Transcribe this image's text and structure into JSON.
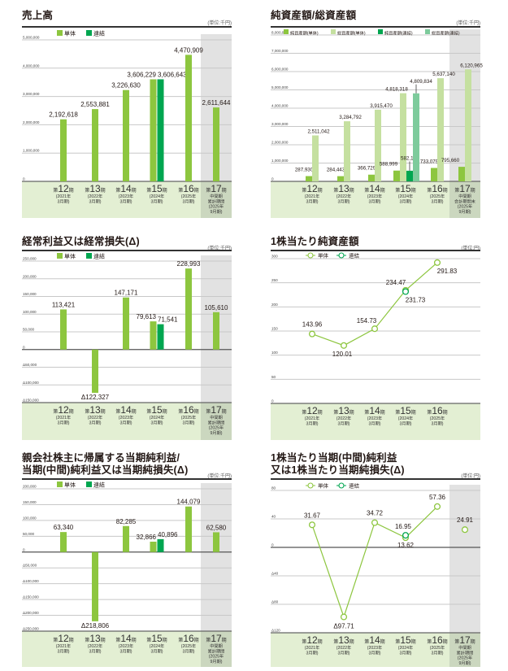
{
  "colors": {
    "standalone": "#8dc63f",
    "consolidated": "#00a650",
    "total_standalone": "#c5e0a0",
    "total_consolidated": "#7ecb9c",
    "band": "#e3efd3",
    "shade": "#e2e2e2",
    "shade_band": "#cbd7bf"
  },
  "chart_data": [
    {
      "type": "bar",
      "title": [
        "売上高"
      ],
      "unit": "(単位:千円)",
      "ylim": [
        0,
        5000000
      ],
      "yticks": [
        0,
        1000000,
        2000000,
        3000000,
        4000000,
        5000000
      ],
      "categories": [
        {
          "num": "12",
          "sub": [
            "(2021年",
            "3月期)"
          ]
        },
        {
          "num": "13",
          "sub": [
            "(2022年",
            "3月期)"
          ]
        },
        {
          "num": "14",
          "sub": [
            "(2023年",
            "3月期)"
          ]
        },
        {
          "num": "15",
          "sub": [
            "(2024年",
            "3月期)"
          ]
        },
        {
          "num": "16",
          "sub": [
            "(2025年",
            "3月期)"
          ]
        },
        {
          "num": "17",
          "sub": [
            "中間期",
            "累計期間",
            "(2025年",
            "9月期)"
          ]
        }
      ],
      "series": [
        {
          "name": "単体",
          "color": "#8dc63f",
          "values": [
            2192618,
            2553881,
            3226630,
            3606229,
            4470909,
            2611644
          ],
          "labels": [
            "2,192,618",
            "2,553,881",
            "3,226,630",
            "3,606,229",
            "4,470,909",
            "2,611,644"
          ]
        },
        {
          "name": "連結",
          "color": "#00a650",
          "values": [
            null,
            null,
            null,
            3606643,
            null,
            null
          ],
          "labels": [
            null,
            null,
            null,
            "3,606,643",
            null,
            null
          ]
        }
      ]
    },
    {
      "type": "bar",
      "title": [
        "純資産額/総資産額"
      ],
      "unit": "(単位:千円)",
      "ylim": [
        0,
        8000000
      ],
      "yticks": [
        0,
        1000000,
        2000000,
        3000000,
        4000000,
        5000000,
        6000000,
        7000000,
        8000000
      ],
      "categories": [
        {
          "num": "12",
          "sub": [
            "(2021年",
            "3月期)"
          ]
        },
        {
          "num": "13",
          "sub": [
            "(2022年",
            "3月期)"
          ]
        },
        {
          "num": "14",
          "sub": [
            "(2023年",
            "3月期)"
          ]
        },
        {
          "num": "15",
          "sub": [
            "(2024年",
            "3月期)"
          ]
        },
        {
          "num": "16",
          "sub": [
            "(2025年",
            "3月期)"
          ]
        },
        {
          "num": "17",
          "sub": [
            "中間期",
            "会計期間末",
            "(2025年",
            "9月期)"
          ]
        }
      ],
      "series": [
        {
          "name": "純資産額(単体)",
          "color": "#8dc63f",
          "values": [
            287930,
            284443,
            366729,
            588999,
            733079,
            795660
          ],
          "labels": [
            "287,930",
            "284,443",
            "366,729",
            "588,999",
            "733,079",
            "795,660"
          ]
        },
        {
          "name": "総資産額(単体)",
          "color": "#c5e0a0",
          "values": [
            2511042,
            3284792,
            3915470,
            4818318,
            5637140,
            6120965
          ],
          "labels": [
            "2,511,042",
            "3,284,792",
            "3,915,470",
            "4,818,318",
            "5,637,140",
            "6,120,965"
          ]
        },
        {
          "name": "純資産額(連結)",
          "color": "#00a650",
          "values": [
            null,
            null,
            null,
            582118,
            null,
            null
          ],
          "labels": [
            null,
            null,
            null,
            "582,118",
            null,
            null
          ]
        },
        {
          "name": "総資産額(連結)",
          "color": "#7ecb9c",
          "values": [
            null,
            null,
            null,
            4809834,
            null,
            null
          ],
          "labels": [
            null,
            null,
            null,
            "4,809,834",
            null,
            null
          ]
        }
      ]
    },
    {
      "type": "bar",
      "title": [
        "経常利益又は経常損失(Δ)"
      ],
      "unit": "(単位:千円)",
      "ylim": [
        -150000,
        250000
      ],
      "yticks": [
        -150000,
        -100000,
        -50000,
        0,
        50000,
        100000,
        150000,
        200000,
        250000
      ],
      "categories": [
        {
          "num": "12",
          "sub": [
            "(2021年",
            "3月期)"
          ]
        },
        {
          "num": "13",
          "sub": [
            "(2022年",
            "3月期)"
          ]
        },
        {
          "num": "14",
          "sub": [
            "(2023年",
            "3月期)"
          ]
        },
        {
          "num": "15",
          "sub": [
            "(2024年",
            "3月期)"
          ]
        },
        {
          "num": "16",
          "sub": [
            "(2025年",
            "3月期)"
          ]
        },
        {
          "num": "17",
          "sub": [
            "中間期",
            "累計期間",
            "(2025年",
            "9月期)"
          ]
        }
      ],
      "series": [
        {
          "name": "単体",
          "color": "#8dc63f",
          "values": [
            113421,
            -122327,
            147171,
            79613,
            228993,
            105610
          ],
          "labels": [
            "113,421",
            "Δ122,327",
            "147,171",
            "79,613",
            "228,993",
            "105,610"
          ]
        },
        {
          "name": "連結",
          "color": "#00a650",
          "values": [
            null,
            null,
            null,
            71541,
            null,
            null
          ],
          "labels": [
            null,
            null,
            null,
            "71,541",
            null,
            null
          ]
        }
      ]
    },
    {
      "type": "line",
      "title": [
        "1株当たり純資産額"
      ],
      "unit": "(単位:円)",
      "ylim": [
        0,
        300
      ],
      "yticks": [
        0,
        50,
        100,
        150,
        200,
        250,
        300
      ],
      "categories": [
        {
          "num": "12",
          "sub": [
            "(2021年",
            "3月期)"
          ]
        },
        {
          "num": "13",
          "sub": [
            "(2022年",
            "3月期)"
          ]
        },
        {
          "num": "14",
          "sub": [
            "(2023年",
            "3月期)"
          ]
        },
        {
          "num": "15",
          "sub": [
            "(2024年",
            "3月期)"
          ]
        },
        {
          "num": "16",
          "sub": [
            "(2025年",
            "3月期)"
          ]
        }
      ],
      "series": [
        {
          "name": "単体",
          "color": "#8dc63f",
          "values": [
            143.96,
            120.01,
            154.73,
            234.47,
            291.83
          ],
          "labels": [
            "143.96",
            "120.01",
            "154.73",
            "234.47",
            "291.83"
          ]
        },
        {
          "name": "連結",
          "color": "#00a650",
          "values": [
            null,
            null,
            null,
            231.73,
            null
          ],
          "labels": [
            null,
            null,
            null,
            "231.73",
            null
          ]
        }
      ]
    },
    {
      "type": "bar",
      "title": [
        "親会社株主に帰属する当期純利益/",
        "当期(中間)純利益又は当期純損失(Δ)"
      ],
      "unit": "(単位:千円)",
      "ylim": [
        -250000,
        200000
      ],
      "yticks": [
        -250000,
        -200000,
        -150000,
        -100000,
        -50000,
        0,
        50000,
        100000,
        150000,
        200000
      ],
      "categories": [
        {
          "num": "12",
          "sub": [
            "(2021年",
            "3月期)"
          ]
        },
        {
          "num": "13",
          "sub": [
            "(2022年",
            "3月期)"
          ]
        },
        {
          "num": "14",
          "sub": [
            "(2023年",
            "3月期)"
          ]
        },
        {
          "num": "15",
          "sub": [
            "(2024年",
            "3月期)"
          ]
        },
        {
          "num": "16",
          "sub": [
            "(2025年",
            "3月期)"
          ]
        },
        {
          "num": "17",
          "sub": [
            "中間期",
            "累計期間",
            "(2025年",
            "9月期)"
          ]
        }
      ],
      "series": [
        {
          "name": "単体",
          "color": "#8dc63f",
          "values": [
            63340,
            -218806,
            82285,
            32866,
            144079,
            62580
          ],
          "labels": [
            "63,340",
            "Δ218,806",
            "82,285",
            "32,866",
            "144,079",
            "62,580"
          ]
        },
        {
          "name": "連結",
          "color": "#00a650",
          "values": [
            null,
            null,
            null,
            40896,
            null,
            null
          ],
          "labels": [
            null,
            null,
            null,
            "40,896",
            null,
            null
          ]
        }
      ]
    },
    {
      "type": "line",
      "title": [
        "1株当たり当期(中間)純利益",
        "又は1株当たり当期純損失(Δ)"
      ],
      "unit": "(単位:円)",
      "ylim": [
        -120,
        80
      ],
      "yticks": [
        -120,
        -80,
        -40,
        0,
        40,
        80
      ],
      "categories": [
        {
          "num": "12",
          "sub": [
            "(2021年",
            "3月期)"
          ]
        },
        {
          "num": "13",
          "sub": [
            "(2022年",
            "3月期)"
          ]
        },
        {
          "num": "14",
          "sub": [
            "(2023年",
            "3月期)"
          ]
        },
        {
          "num": "15",
          "sub": [
            "(2024年",
            "3月期)"
          ]
        },
        {
          "num": "16",
          "sub": [
            "(2025年",
            "3月期)"
          ]
        },
        {
          "num": "17",
          "sub": [
            "中間期",
            "累計期間",
            "(2025年",
            "9月期)"
          ]
        }
      ],
      "series": [
        {
          "name": "単体",
          "color": "#8dc63f",
          "values": [
            31.67,
            -97.71,
            34.72,
            13.62,
            57.36,
            24.91
          ],
          "labels": [
            "31.67",
            "Δ97.71",
            "34.72",
            "13.62",
            "57.36",
            "24.91"
          ]
        },
        {
          "name": "連結",
          "color": "#00a650",
          "values": [
            null,
            null,
            null,
            16.95,
            null,
            null
          ],
          "labels": [
            null,
            null,
            null,
            "16.95",
            null,
            null
          ]
        }
      ]
    }
  ]
}
